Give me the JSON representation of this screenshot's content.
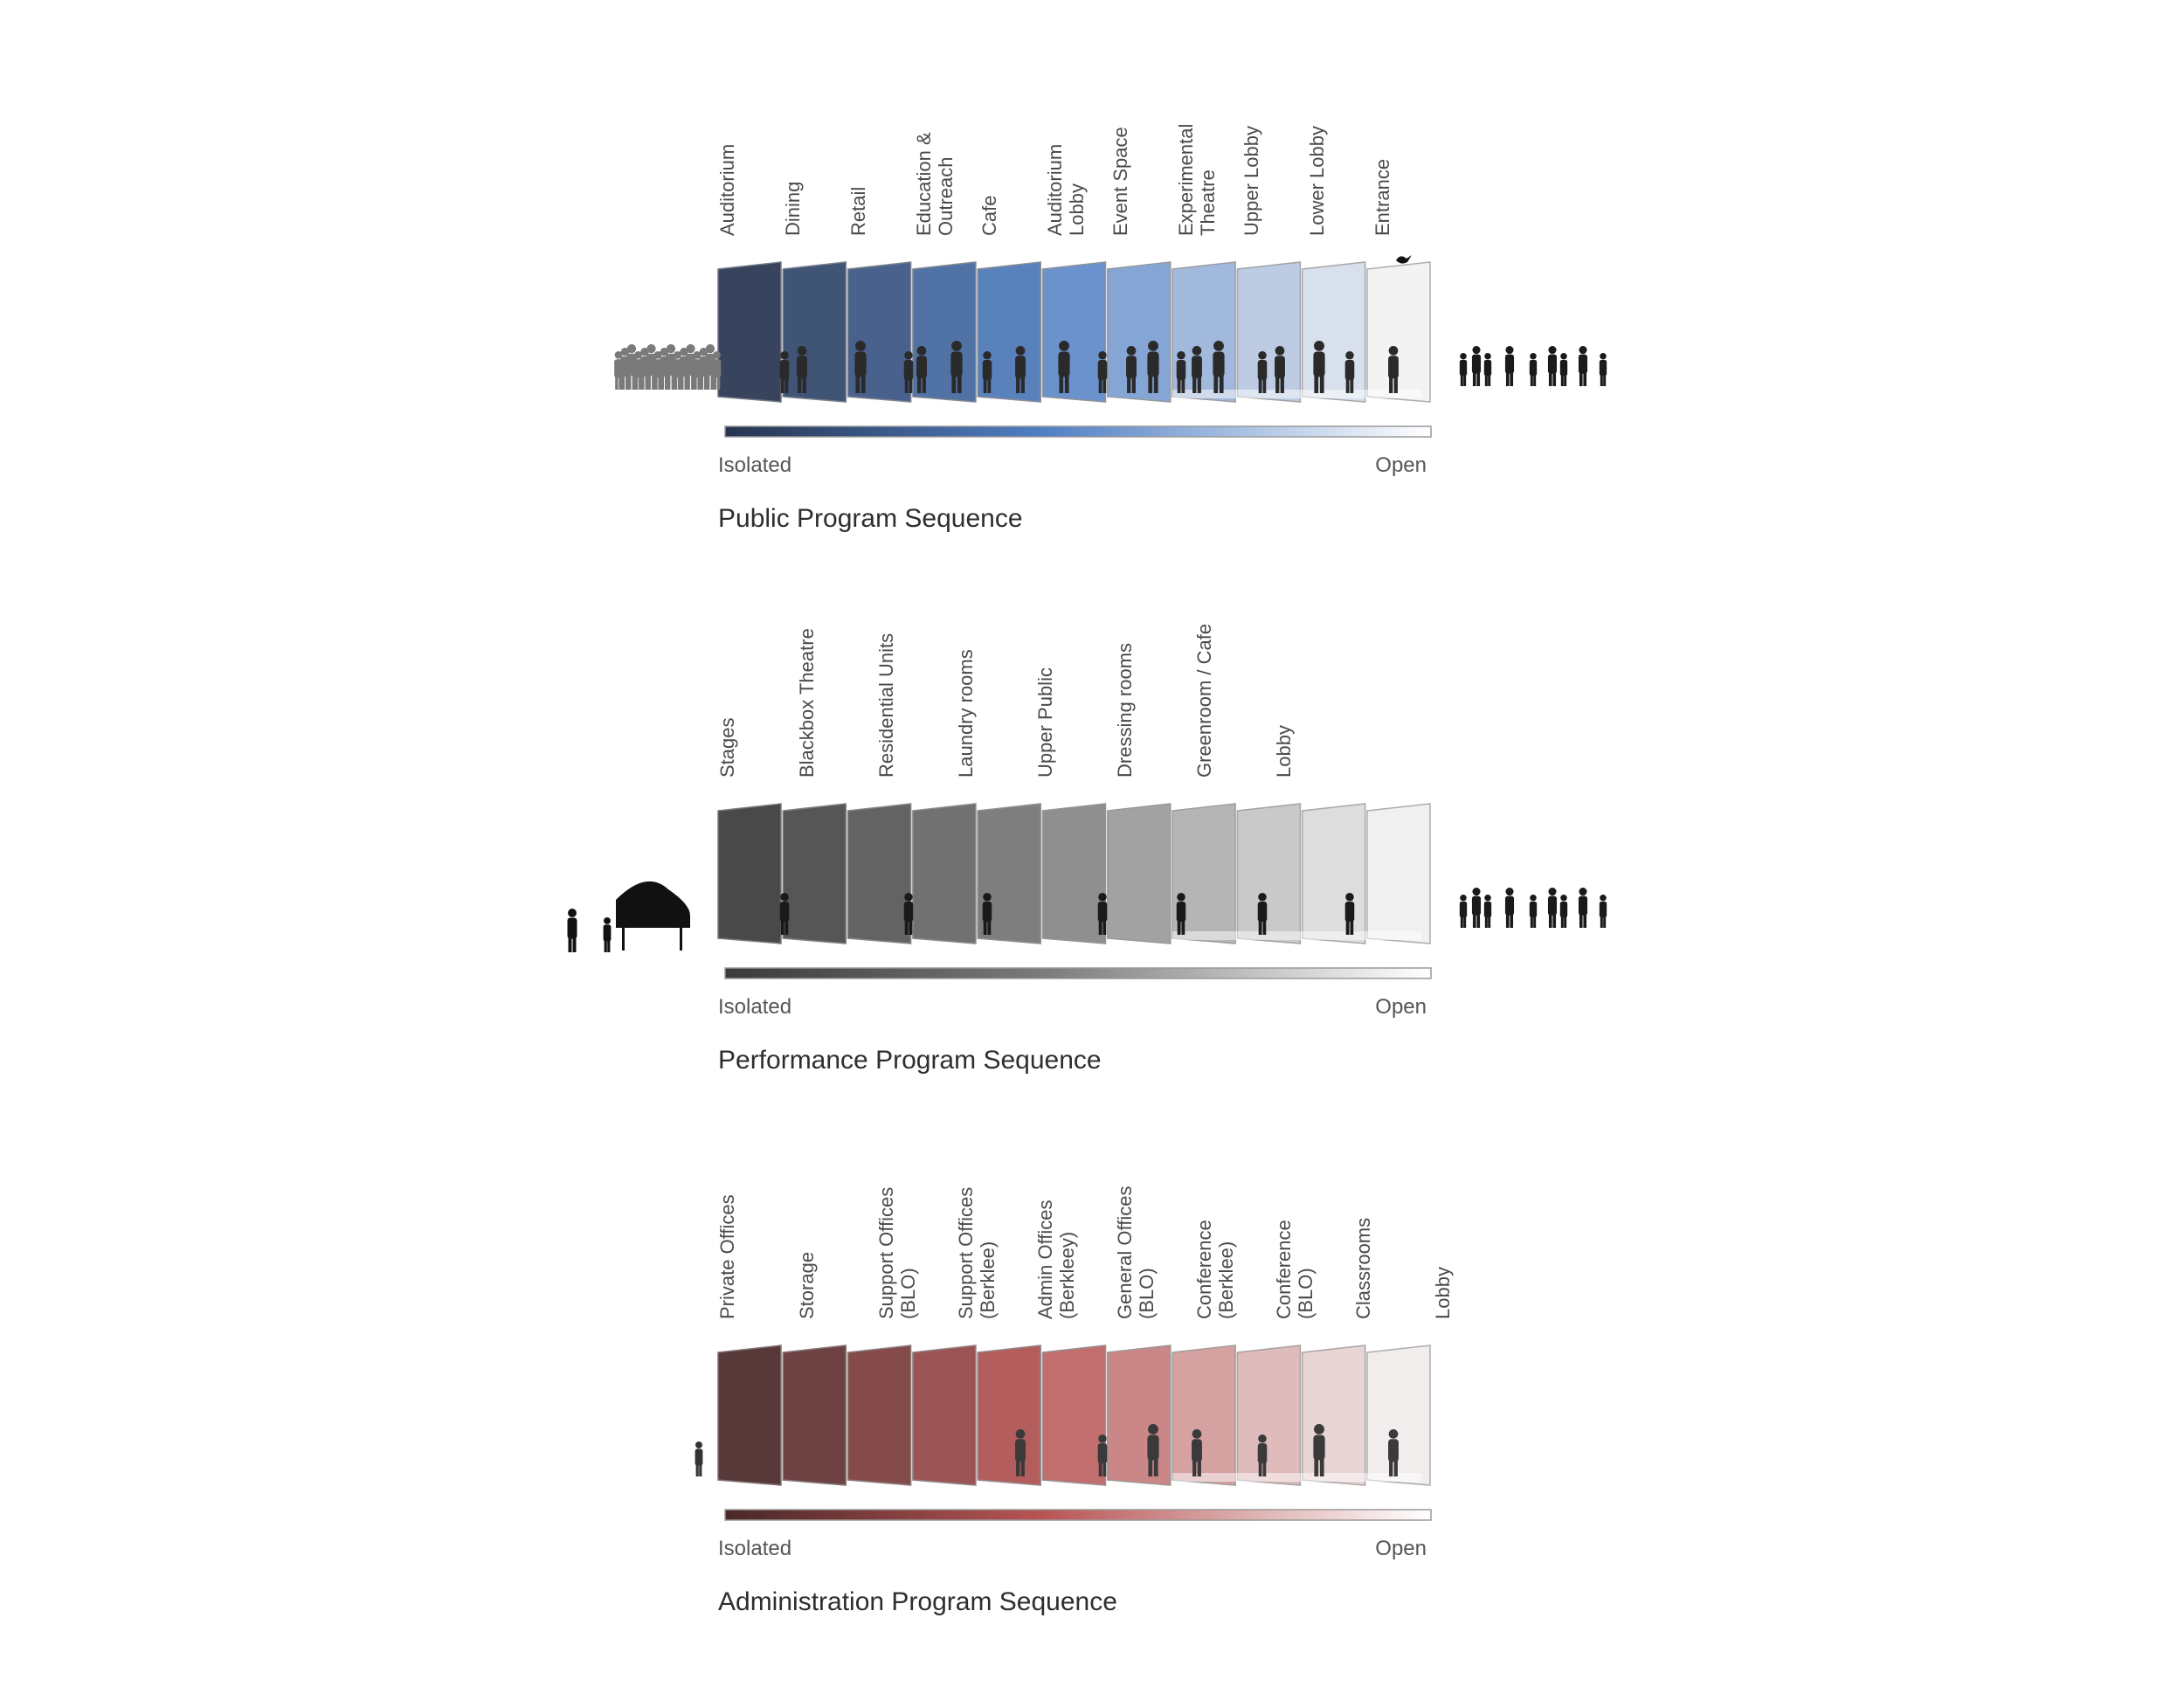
{
  "sections": [
    {
      "id": "public",
      "title": "Public Program Sequence",
      "labels": [
        [
          "Auditorium"
        ],
        [
          "Dining"
        ],
        [
          "Retail"
        ],
        [
          "Education &",
          "Outreach"
        ],
        [
          "Cafe"
        ],
        [
          "Auditorium",
          "Lobby"
        ],
        [
          "Event Space"
        ],
        [
          "Experimental",
          "Theatre"
        ],
        [
          "Upper Lobby"
        ],
        [
          "Lower Lobby"
        ],
        [
          "Entrance"
        ]
      ],
      "scale_left": "Isolated",
      "scale_right": "Open",
      "dark_color": "#27344f",
      "mid_color": "#4f7fc4",
      "light_color": "#f2f2f2",
      "figure_color": "#2a2a2a",
      "outside_color": "#7a7a7a"
    },
    {
      "id": "performance",
      "title": "Performance Program Sequence",
      "labels": [
        [
          "Stages"
        ],
        [
          "Blackbox Theatre"
        ],
        [
          "Residential Units"
        ],
        [
          "Laundry rooms"
        ],
        [
          "Upper Public"
        ],
        [
          "Dressing rooms"
        ],
        [
          "Greenroom / Cafe"
        ],
        [
          "Lobby"
        ]
      ],
      "scale_left": "Isolated",
      "scale_right": "Open",
      "dark_color": "#3a3a3a",
      "mid_color": "#7a7a7a",
      "light_color": "#efefef",
      "figure_color": "#1a1a1a",
      "outside_color": "#111111"
    },
    {
      "id": "administration",
      "title": "Administration Program Sequence",
      "labels": [
        [
          "Private Offices"
        ],
        [
          "Storage"
        ],
        [
          "Support Offices",
          "(BLO)"
        ],
        [
          "Support Offices",
          "(Berklee)"
        ],
        [
          "Admin Offices",
          "(Berkleey)"
        ],
        [
          "General Offices",
          "(BLO)"
        ],
        [
          "Conference",
          "(Berklee)"
        ],
        [
          "Conference",
          "(BLO)"
        ],
        [
          "Classrooms"
        ],
        [
          "Lobby"
        ]
      ],
      "scale_left": "Isolated",
      "scale_right": "Open",
      "dark_color": "#4a2828",
      "mid_color": "#b85454",
      "light_color": "#f0ecec",
      "figure_color": "#3a3a3a",
      "outside_color": "#333333"
    }
  ]
}
